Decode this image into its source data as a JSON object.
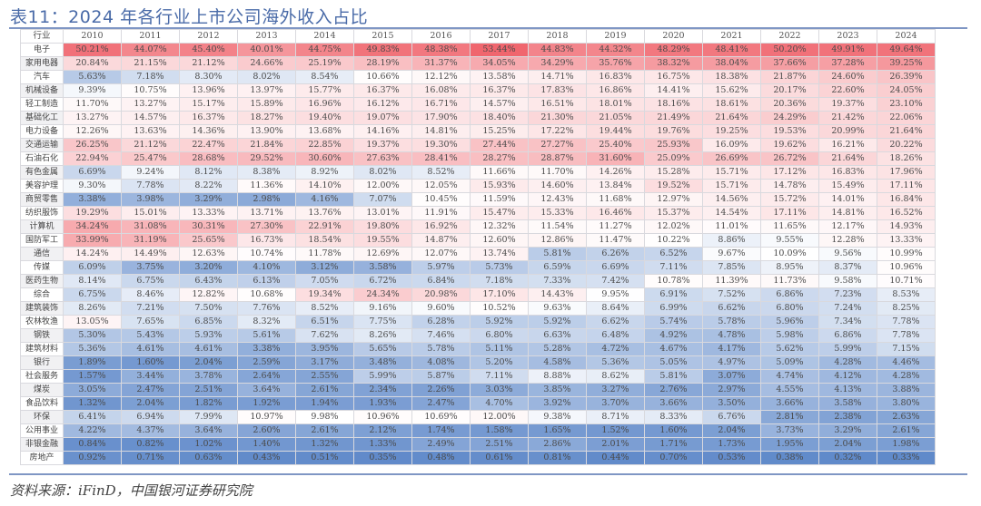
{
  "title": "表11：2024 年各行业上市公司海外收入占比",
  "source": "资料来源：iFinD，中国银河证券研究院",
  "colors": {
    "title": "#4a6ba8",
    "rule": "#7f96c4",
    "low": "#5b86c8",
    "mid": "#ffffff",
    "high": "#f0666e"
  },
  "chart_data": {
    "type": "heatmap",
    "title": "表11：2024 年各行业上市公司海外收入占比",
    "row_header": "行业",
    "columns": [
      "2010",
      "2011",
      "2012",
      "2013",
      "2014",
      "2015",
      "2016",
      "2017",
      "2018",
      "2019",
      "2020",
      "2021",
      "2022",
      "2023",
      "2024"
    ],
    "rows": [
      {
        "label": "电子",
        "values": [
          "50.21%",
          "44.07%",
          "45.40%",
          "40.01%",
          "44.75%",
          "49.83%",
          "48.38%",
          "53.44%",
          "44.83%",
          "44.32%",
          "48.29%",
          "48.41%",
          "50.20%",
          "49.91%",
          "49.64%"
        ]
      },
      {
        "label": "家用电器",
        "values": [
          "20.84%",
          "21.15%",
          "21.12%",
          "24.66%",
          "25.19%",
          "28.19%",
          "31.37%",
          "34.05%",
          "34.29%",
          "35.76%",
          "38.32%",
          "38.04%",
          "37.66%",
          "37.28%",
          "39.25%"
        ]
      },
      {
        "label": "汽车",
        "values": [
          "5.63%",
          "7.18%",
          "8.30%",
          "8.02%",
          "8.54%",
          "10.66%",
          "12.12%",
          "13.58%",
          "14.71%",
          "16.83%",
          "16.75%",
          "18.38%",
          "21.87%",
          "24.60%",
          "26.39%"
        ]
      },
      {
        "label": "机械设备",
        "values": [
          "9.39%",
          "10.75%",
          "13.96%",
          "13.97%",
          "15.77%",
          "16.37%",
          "16.08%",
          "16.37%",
          "17.83%",
          "16.86%",
          "14.41%",
          "15.62%",
          "20.17%",
          "22.60%",
          "24.05%"
        ]
      },
      {
        "label": "轻工制造",
        "values": [
          "11.70%",
          "13.27%",
          "15.17%",
          "15.89%",
          "16.96%",
          "16.12%",
          "16.71%",
          "14.57%",
          "16.51%",
          "18.01%",
          "18.16%",
          "18.61%",
          "20.36%",
          "19.37%",
          "23.10%"
        ]
      },
      {
        "label": "基础化工",
        "values": [
          "13.27%",
          "14.57%",
          "16.37%",
          "18.27%",
          "19.40%",
          "19.07%",
          "17.90%",
          "18.40%",
          "21.30%",
          "21.05%",
          "21.49%",
          "21.64%",
          "24.29%",
          "21.42%",
          "22.06%"
        ]
      },
      {
        "label": "电力设备",
        "values": [
          "12.26%",
          "13.63%",
          "14.36%",
          "13.90%",
          "13.68%",
          "14.16%",
          "14.81%",
          "15.25%",
          "17.22%",
          "19.44%",
          "19.76%",
          "19.25%",
          "19.53%",
          "20.99%",
          "21.64%"
        ]
      },
      {
        "label": "交通运输",
        "values": [
          "26.25%",
          "21.12%",
          "22.47%",
          "21.84%",
          "22.85%",
          "19.37%",
          "19.30%",
          "27.44%",
          "27.27%",
          "25.40%",
          "25.93%",
          "16.09%",
          "19.62%",
          "16.21%",
          "20.22%"
        ]
      },
      {
        "label": "石油石化",
        "values": [
          "22.94%",
          "25.47%",
          "28.68%",
          "29.52%",
          "30.60%",
          "27.63%",
          "28.41%",
          "28.27%",
          "28.87%",
          "31.60%",
          "25.09%",
          "26.69%",
          "26.72%",
          "21.64%",
          "18.26%"
        ]
      },
      {
        "label": "有色金属",
        "values": [
          "6.69%",
          "9.24%",
          "8.12%",
          "8.38%",
          "8.92%",
          "8.02%",
          "8.52%",
          "11.66%",
          "11.70%",
          "14.26%",
          "15.28%",
          "15.71%",
          "17.12%",
          "16.83%",
          "17.96%"
        ]
      },
      {
        "label": "美容护理",
        "values": [
          "9.30%",
          "7.78%",
          "8.22%",
          "11.36%",
          "14.10%",
          "12.00%",
          "12.05%",
          "15.93%",
          "14.60%",
          "13.84%",
          "19.52%",
          "15.71%",
          "14.78%",
          "15.49%",
          "17.11%"
        ]
      },
      {
        "label": "商贸零售",
        "values": [
          "3.38%",
          "3.98%",
          "3.29%",
          "2.98%",
          "4.16%",
          "7.07%",
          "10.45%",
          "11.59%",
          "12.43%",
          "11.68%",
          "12.97%",
          "14.56%",
          "15.72%",
          "14.01%",
          "16.84%"
        ]
      },
      {
        "label": "纺织服饰",
        "values": [
          "19.29%",
          "15.01%",
          "13.33%",
          "13.71%",
          "13.76%",
          "13.01%",
          "11.91%",
          "15.47%",
          "15.33%",
          "16.46%",
          "15.37%",
          "14.54%",
          "17.11%",
          "14.81%",
          "16.52%"
        ]
      },
      {
        "label": "计算机",
        "values": [
          "34.24%",
          "31.08%",
          "30.31%",
          "27.30%",
          "22.91%",
          "19.80%",
          "16.92%",
          "12.32%",
          "11.54%",
          "11.27%",
          "12.02%",
          "11.01%",
          "11.65%",
          "12.17%",
          "14.93%"
        ]
      },
      {
        "label": "国防军工",
        "values": [
          "33.99%",
          "31.19%",
          "25.65%",
          "16.73%",
          "18.54%",
          "19.55%",
          "14.87%",
          "12.60%",
          "12.86%",
          "11.47%",
          "10.22%",
          "8.86%",
          "9.55%",
          "12.28%",
          "13.33%"
        ]
      },
      {
        "label": "通信",
        "values": [
          "14.24%",
          "14.49%",
          "12.63%",
          "10.74%",
          "11.78%",
          "12.69%",
          "12.07%",
          "13.74%",
          "5.81%",
          "6.26%",
          "6.52%",
          "9.67%",
          "10.09%",
          "9.56%",
          "10.99%"
        ]
      },
      {
        "label": "传媒",
        "values": [
          "6.09%",
          "3.75%",
          "3.20%",
          "4.10%",
          "3.12%",
          "3.58%",
          "5.97%",
          "5.73%",
          "6.59%",
          "6.69%",
          "7.11%",
          "7.85%",
          "8.95%",
          "8.37%",
          "10.96%"
        ]
      },
      {
        "label": "医药生物",
        "values": [
          "8.14%",
          "6.75%",
          "6.43%",
          "6.13%",
          "7.05%",
          "6.72%",
          "6.84%",
          "7.18%",
          "7.33%",
          "7.42%",
          "10.78%",
          "11.39%",
          "11.73%",
          "9.58%",
          "10.71%"
        ]
      },
      {
        "label": "综合",
        "values": [
          "6.75%",
          "8.46%",
          "12.82%",
          "10.68%",
          "19.34%",
          "24.34%",
          "20.98%",
          "17.10%",
          "14.43%",
          "9.95%",
          "6.91%",
          "7.52%",
          "6.86%",
          "7.23%",
          "8.53%"
        ]
      },
      {
        "label": "建筑装饰",
        "values": [
          "8.26%",
          "7.21%",
          "7.50%",
          "7.76%",
          "8.52%",
          "9.16%",
          "9.60%",
          "10.52%",
          "9.63%",
          "8.64%",
          "6.99%",
          "6.62%",
          "6.80%",
          "7.24%",
          "8.25%"
        ]
      },
      {
        "label": "农林牧渔",
        "values": [
          "13.05%",
          "7.65%",
          "6.85%",
          "8.32%",
          "6.51%",
          "7.75%",
          "6.28%",
          "5.92%",
          "5.92%",
          "6.62%",
          "5.74%",
          "5.78%",
          "5.96%",
          "7.34%",
          "7.78%"
        ]
      },
      {
        "label": "钢铁",
        "values": [
          "5.30%",
          "5.43%",
          "5.93%",
          "5.61%",
          "7.62%",
          "8.26%",
          "7.46%",
          "6.80%",
          "6.63%",
          "6.48%",
          "4.92%",
          "4.78%",
          "5.98%",
          "6.86%",
          "7.78%"
        ]
      },
      {
        "label": "建筑材料",
        "values": [
          "5.36%",
          "4.61%",
          "4.61%",
          "3.38%",
          "3.95%",
          "5.65%",
          "5.78%",
          "5.11%",
          "5.28%",
          "4.72%",
          "4.67%",
          "4.17%",
          "5.62%",
          "5.99%",
          "7.15%"
        ]
      },
      {
        "label": "银行",
        "values": [
          "1.89%",
          "1.60%",
          "2.04%",
          "2.59%",
          "3.17%",
          "3.48%",
          "4.08%",
          "5.20%",
          "4.58%",
          "5.36%",
          "5.05%",
          "4.97%",
          "5.09%",
          "4.28%",
          "4.46%"
        ]
      },
      {
        "label": "社会服务",
        "values": [
          "1.57%",
          "3.44%",
          "3.78%",
          "2.64%",
          "2.55%",
          "5.99%",
          "5.87%",
          "7.11%",
          "8.88%",
          "8.62%",
          "5.81%",
          "3.07%",
          "4.74%",
          "4.12%",
          "4.28%"
        ]
      },
      {
        "label": "煤炭",
        "values": [
          "3.05%",
          "2.47%",
          "2.51%",
          "3.64%",
          "2.61%",
          "2.34%",
          "2.26%",
          "3.03%",
          "3.85%",
          "3.27%",
          "2.76%",
          "2.97%",
          "4.55%",
          "4.13%",
          "3.88%"
        ]
      },
      {
        "label": "食品饮料",
        "values": [
          "1.32%",
          "2.04%",
          "1.82%",
          "1.92%",
          "1.94%",
          "1.93%",
          "2.47%",
          "4.70%",
          "3.92%",
          "3.70%",
          "3.66%",
          "3.50%",
          "3.66%",
          "3.58%",
          "3.80%"
        ]
      },
      {
        "label": "环保",
        "values": [
          "6.41%",
          "6.94%",
          "7.99%",
          "10.97%",
          "9.98%",
          "10.96%",
          "10.69%",
          "12.00%",
          "9.38%",
          "8.71%",
          "8.33%",
          "6.76%",
          "2.81%",
          "2.38%",
          "2.63%"
        ]
      },
      {
        "label": "公用事业",
        "values": [
          "4.22%",
          "4.37%",
          "3.64%",
          "2.60%",
          "2.61%",
          "2.12%",
          "1.74%",
          "1.58%",
          "1.65%",
          "1.52%",
          "1.60%",
          "2.04%",
          "3.73%",
          "3.29%",
          "2.61%"
        ]
      },
      {
        "label": "非银金融",
        "values": [
          "0.84%",
          "0.82%",
          "1.02%",
          "1.40%",
          "1.32%",
          "1.33%",
          "2.49%",
          "2.51%",
          "2.86%",
          "2.01%",
          "1.71%",
          "1.73%",
          "1.95%",
          "2.04%",
          "1.98%"
        ]
      },
      {
        "label": "房地产",
        "values": [
          "0.92%",
          "0.71%",
          "0.63%",
          "0.43%",
          "0.51%",
          "0.35%",
          "0.48%",
          "0.61%",
          "0.81%",
          "0.44%",
          "0.70%",
          "0.53%",
          "0.38%",
          "0.32%",
          "0.33%"
        ]
      }
    ],
    "color_scale": {
      "min_value": 0,
      "mid_value": 10,
      "max_value": 53.44
    }
  }
}
